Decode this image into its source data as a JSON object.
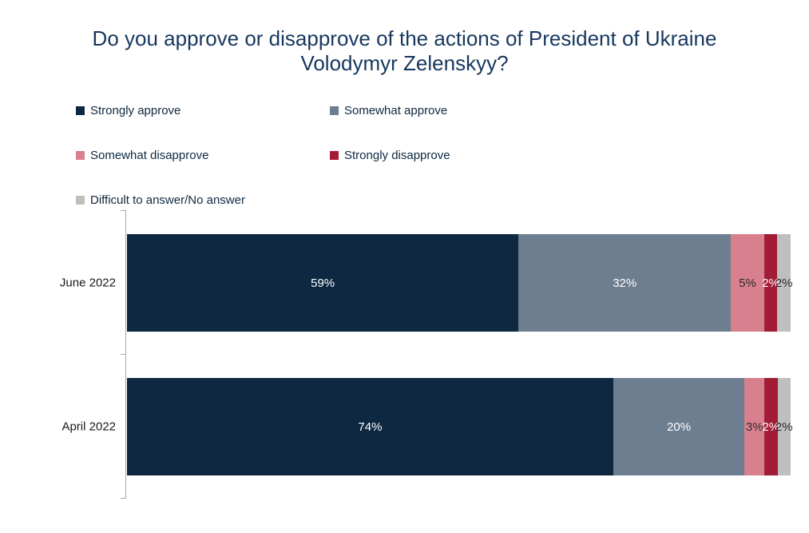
{
  "title": {
    "line1": "Do you approve or disapprove of the actions of President of Ukraine",
    "line2": "Volodymyr Zelenskyy?"
  },
  "colors": {
    "title": "#17375E",
    "legend_text": "#0E2841",
    "category_text": "#1A1A1A",
    "axis": "#A6A6A6"
  },
  "chart_data": {
    "type": "bar",
    "orientation": "horizontal",
    "stacked": true,
    "title": "Do you approve or disapprove of the actions of President of Ukraine Volodymyr Zelenskyy?",
    "categories": [
      "June 2022",
      "April 2022"
    ],
    "series": [
      {
        "name": "Strongly approve",
        "color": "#0E2841",
        "label_color": "#FFFFFF",
        "values": [
          59,
          74
        ]
      },
      {
        "name": "Somewhat approve",
        "color": "#6D7E90",
        "label_color": "#FFFFFF",
        "values": [
          32,
          20
        ]
      },
      {
        "name": "Somewhat disapprove",
        "color": "#D9808E",
        "label_color": "#2B2B2B",
        "values": [
          5,
          3
        ]
      },
      {
        "name": "Strongly disapprove",
        "color": "#A21C35",
        "label_color": "#FFFFFF",
        "values": [
          2,
          2
        ]
      },
      {
        "name": "Difficult to answer/No answer",
        "color": "#BFBFBF",
        "label_color": "#2B2B2B",
        "values": [
          2,
          2
        ]
      }
    ],
    "value_suffix": "%",
    "xlim": [
      0,
      100
    ],
    "legend_position": "top",
    "grid": false
  }
}
